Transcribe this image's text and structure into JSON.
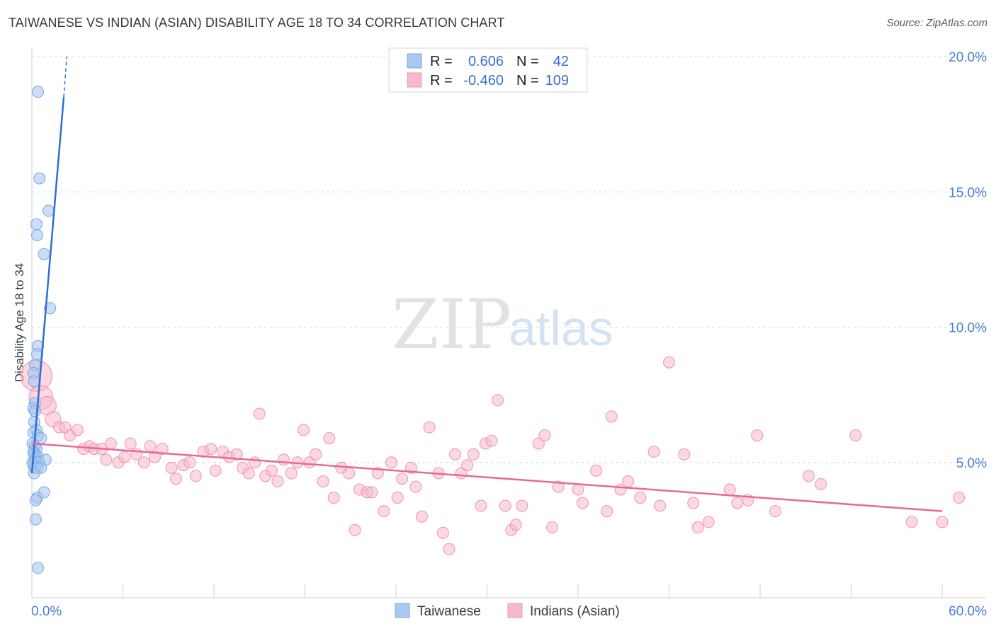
{
  "title": "TAIWANESE VS INDIAN (ASIAN) DISABILITY AGE 18 TO 34 CORRELATION CHART",
  "source": "Source: ZipAtlas.com",
  "watermark": {
    "part1": "ZIP",
    "part2": "atlas"
  },
  "colors": {
    "taiwanese_fill": "#a9c8f2",
    "taiwanese_stroke": "#7aa6e6",
    "taiwanese_line": "#2f6fd0",
    "indian_fill": "#f7b8cb",
    "indian_stroke": "#ee93b0",
    "indian_line": "#e8689a",
    "grid": "#dcdcdc",
    "axis_text": "#4a7fd0"
  },
  "legend": {
    "rows": [
      {
        "r_label": "R =",
        "r_value": "0.606",
        "n_label": "N =",
        "n_value": "42"
      },
      {
        "r_label": "R =",
        "r_value": "-0.460",
        "n_label": "N =",
        "n_value": "109"
      }
    ]
  },
  "chart_data": {
    "type": "scatter",
    "title": "TAIWANESE VS INDIAN (ASIAN) DISABILITY AGE 18 TO 34 CORRELATION CHART",
    "xlabel": "",
    "ylabel": "Disability Age 18 to 34",
    "xlim": [
      0,
      60
    ],
    "ylim": [
      0,
      21
    ],
    "x_tick_labels": [
      "0.0%",
      "60.0%"
    ],
    "y_ticks": [
      5,
      10,
      15,
      20
    ],
    "y_tick_labels": [
      "5.0%",
      "10.0%",
      "15.0%",
      "20.0%"
    ],
    "legend_position": "bottom",
    "series": [
      {
        "name": "Taiwanese",
        "R": 0.606,
        "N": 42,
        "trend": {
          "x0": 0.0,
          "y0": 4.6,
          "x1": 2.1,
          "y1": 18.5,
          "dash_to_x": 2.3,
          "dash_to_y": 20.0
        },
        "points": [
          [
            0.4,
            18.7
          ],
          [
            0.5,
            15.5
          ],
          [
            1.1,
            14.3
          ],
          [
            0.3,
            13.8
          ],
          [
            0.35,
            13.4
          ],
          [
            0.8,
            12.7
          ],
          [
            1.2,
            10.7
          ],
          [
            0.4,
            9.3
          ],
          [
            0.35,
            9.0
          ],
          [
            0.2,
            8.6
          ],
          [
            0.1,
            8.3
          ],
          [
            0.15,
            8.0
          ],
          [
            0.2,
            7.2
          ],
          [
            0.1,
            7.0
          ],
          [
            0.2,
            6.9
          ],
          [
            0.15,
            6.5
          ],
          [
            0.3,
            6.2
          ],
          [
            0.1,
            6.1
          ],
          [
            0.4,
            6.0
          ],
          [
            0.6,
            5.9
          ],
          [
            0.05,
            5.7
          ],
          [
            0.2,
            5.6
          ],
          [
            0.3,
            5.5
          ],
          [
            0.1,
            5.4
          ],
          [
            0.15,
            5.3
          ],
          [
            0.25,
            5.2
          ],
          [
            0.4,
            5.2
          ],
          [
            0.2,
            5.1
          ],
          [
            0.05,
            5.0
          ],
          [
            0.3,
            5.0
          ],
          [
            0.5,
            5.0
          ],
          [
            0.9,
            5.1
          ],
          [
            0.1,
            4.9
          ],
          [
            0.2,
            4.8
          ],
          [
            0.35,
            4.8
          ],
          [
            0.6,
            4.8
          ],
          [
            0.15,
            4.6
          ],
          [
            0.8,
            3.9
          ],
          [
            0.35,
            3.7
          ],
          [
            0.25,
            3.6
          ],
          [
            0.25,
            2.9
          ],
          [
            0.4,
            1.1
          ]
        ]
      },
      {
        "name": "Indians (Asian)",
        "R": -0.46,
        "N": 109,
        "trend": {
          "x0": 0.0,
          "y0": 5.7,
          "x1": 60.0,
          "y1": 3.2
        },
        "points": [
          [
            0.3,
            8.2
          ],
          [
            0.6,
            7.4
          ],
          [
            1.0,
            7.1
          ],
          [
            1.4,
            6.6
          ],
          [
            1.8,
            6.3
          ],
          [
            2.2,
            6.3
          ],
          [
            2.5,
            6.0
          ],
          [
            3.0,
            6.2
          ],
          [
            3.4,
            5.5
          ],
          [
            3.8,
            5.6
          ],
          [
            4.1,
            5.5
          ],
          [
            4.6,
            5.5
          ],
          [
            4.9,
            5.1
          ],
          [
            5.2,
            5.7
          ],
          [
            5.7,
            5.0
          ],
          [
            6.1,
            5.2
          ],
          [
            6.5,
            5.7
          ],
          [
            6.9,
            5.3
          ],
          [
            7.4,
            5.0
          ],
          [
            7.8,
            5.6
          ],
          [
            8.1,
            5.2
          ],
          [
            8.6,
            5.5
          ],
          [
            9.2,
            4.8
          ],
          [
            9.5,
            4.4
          ],
          [
            10.0,
            4.9
          ],
          [
            10.4,
            5.0
          ],
          [
            10.8,
            4.5
          ],
          [
            11.3,
            5.4
          ],
          [
            11.8,
            5.5
          ],
          [
            12.1,
            4.7
          ],
          [
            12.6,
            5.4
          ],
          [
            13.0,
            5.2
          ],
          [
            13.5,
            5.3
          ],
          [
            13.9,
            4.8
          ],
          [
            14.3,
            4.6
          ],
          [
            14.7,
            5.0
          ],
          [
            15.0,
            6.8
          ],
          [
            15.4,
            4.5
          ],
          [
            15.8,
            4.7
          ],
          [
            16.2,
            4.3
          ],
          [
            16.6,
            5.1
          ],
          [
            17.1,
            4.6
          ],
          [
            17.5,
            5.0
          ],
          [
            17.9,
            6.2
          ],
          [
            18.3,
            5.0
          ],
          [
            18.7,
            5.3
          ],
          [
            19.2,
            4.3
          ],
          [
            19.6,
            5.9
          ],
          [
            19.9,
            3.7
          ],
          [
            20.4,
            4.8
          ],
          [
            20.9,
            4.6
          ],
          [
            21.3,
            2.5
          ],
          [
            21.6,
            4.0
          ],
          [
            22.1,
            3.9
          ],
          [
            22.4,
            3.9
          ],
          [
            22.8,
            4.6
          ],
          [
            23.2,
            3.2
          ],
          [
            23.7,
            5.0
          ],
          [
            24.1,
            3.7
          ],
          [
            24.4,
            4.4
          ],
          [
            25.0,
            4.8
          ],
          [
            25.3,
            4.1
          ],
          [
            25.7,
            3.0
          ],
          [
            26.2,
            6.3
          ],
          [
            26.8,
            4.6
          ],
          [
            27.1,
            2.4
          ],
          [
            27.5,
            1.8
          ],
          [
            27.9,
            5.3
          ],
          [
            28.3,
            4.6
          ],
          [
            28.7,
            4.9
          ],
          [
            29.1,
            5.3
          ],
          [
            29.6,
            3.4
          ],
          [
            29.9,
            5.7
          ],
          [
            30.3,
            5.8
          ],
          [
            30.7,
            7.3
          ],
          [
            31.2,
            3.4
          ],
          [
            31.6,
            2.5
          ],
          [
            31.9,
            2.7
          ],
          [
            32.3,
            3.4
          ],
          [
            33.4,
            5.7
          ],
          [
            33.8,
            6.0
          ],
          [
            34.3,
            2.6
          ],
          [
            34.7,
            4.1
          ],
          [
            36.0,
            4.0
          ],
          [
            36.3,
            3.5
          ],
          [
            37.2,
            4.7
          ],
          [
            37.9,
            3.2
          ],
          [
            38.2,
            6.7
          ],
          [
            38.8,
            4.0
          ],
          [
            39.3,
            4.3
          ],
          [
            40.1,
            3.7
          ],
          [
            41.0,
            5.4
          ],
          [
            41.4,
            3.4
          ],
          [
            43.0,
            5.3
          ],
          [
            43.6,
            3.5
          ],
          [
            43.9,
            2.6
          ],
          [
            44.6,
            2.8
          ],
          [
            46.0,
            4.0
          ],
          [
            46.5,
            3.5
          ],
          [
            47.2,
            3.6
          ],
          [
            47.8,
            6.0
          ],
          [
            49.0,
            3.2
          ],
          [
            51.2,
            4.5
          ],
          [
            52.0,
            4.2
          ],
          [
            54.3,
            6.0
          ],
          [
            58.0,
            2.8
          ],
          [
            60.0,
            2.8
          ],
          [
            61.1,
            3.7
          ],
          [
            42.0,
            8.7
          ]
        ]
      }
    ],
    "bottom_legend": [
      "Taiwanese",
      "Indians (Asian)"
    ]
  }
}
